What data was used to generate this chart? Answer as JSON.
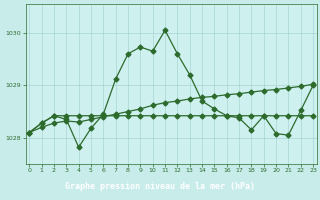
{
  "title": "Graphe pression niveau de la mer (hPa)",
  "bg_color": "#c8ecea",
  "plot_bg": "#cef0ee",
  "label_bg": "#4a8a4a",
  "grid_color": "#9ecfcc",
  "line_color": "#2d6b2d",
  "text_color": "#2d6b2d",
  "title_color": "#ffffff",
  "xlim": [
    -0.3,
    23.3
  ],
  "ylim": [
    1027.5,
    1030.55
  ],
  "yticks": [
    1028,
    1029,
    1030
  ],
  "xticks": [
    0,
    1,
    2,
    3,
    4,
    5,
    6,
    7,
    8,
    9,
    10,
    11,
    12,
    13,
    14,
    15,
    16,
    17,
    18,
    19,
    20,
    21,
    22,
    23
  ],
  "line1_y": [
    1028.1,
    1028.28,
    1028.42,
    1028.42,
    1028.42,
    1028.42,
    1028.42,
    1028.42,
    1028.42,
    1028.42,
    1028.42,
    1028.42,
    1028.42,
    1028.42,
    1028.42,
    1028.42,
    1028.42,
    1028.42,
    1028.42,
    1028.42,
    1028.42,
    1028.42,
    1028.42,
    1028.42
  ],
  "line2_y": [
    1028.1,
    1028.2,
    1028.28,
    1028.32,
    1028.3,
    1028.35,
    1028.4,
    1028.45,
    1028.5,
    1028.55,
    1028.62,
    1028.67,
    1028.7,
    1028.74,
    1028.77,
    1028.79,
    1028.82,
    1028.84,
    1028.87,
    1028.9,
    1028.92,
    1028.95,
    1028.98,
    1029.02
  ],
  "line3_y": [
    1028.1,
    1028.28,
    1028.42,
    1028.35,
    1027.82,
    1028.18,
    1028.45,
    1029.12,
    1029.6,
    1029.73,
    1029.65,
    1030.05,
    1029.6,
    1029.2,
    1028.7,
    1028.55,
    1028.42,
    1028.38,
    1028.15,
    1028.42,
    1028.08,
    1028.05,
    1028.52,
    1029.0
  ],
  "markersize": 2.5,
  "linewidth": 0.9
}
